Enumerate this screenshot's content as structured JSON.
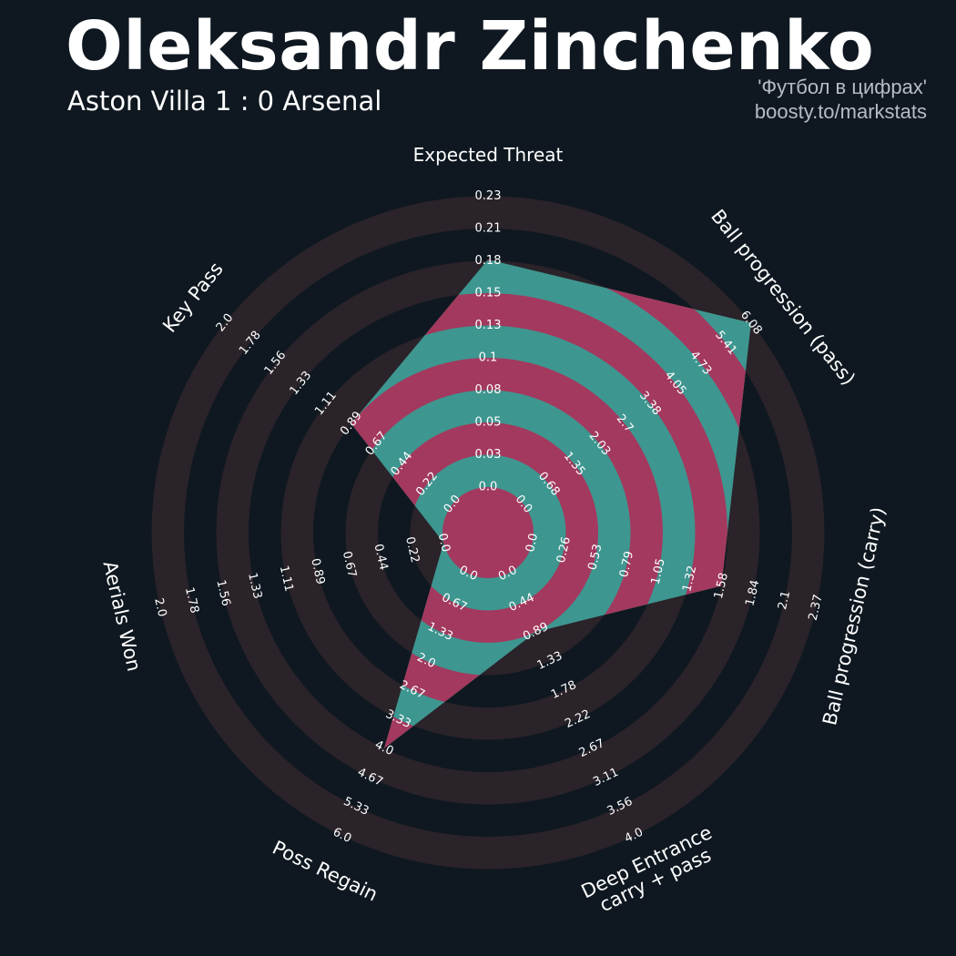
{
  "header": {
    "title": "Oleksandr Zinchenko",
    "subtitle": "Aston Villa 1 : 0 Arsenal",
    "credit_line1": "'Футбол в цифрах'",
    "credit_line2": "boosty.to/markstats"
  },
  "colors": {
    "background": "#0f1820",
    "ring_band": "#2a2329",
    "polygon_fill": "#3e9690",
    "polygon_band": "#a3395e",
    "text": "#ffffff",
    "credit_text": "#b8bcc2"
  },
  "chart_data": {
    "type": "radar",
    "title": "Oleksandr Zinchenko",
    "subtitle": "Aston Villa 1 : 0 Arsenal",
    "axes": [
      {
        "label": [
          "Expected Threat"
        ],
        "ticks": [
          "0.0",
          "0.03",
          "0.05",
          "0.08",
          "0.1",
          "0.13",
          "0.15",
          "0.18",
          "0.21",
          "0.23"
        ],
        "min": 0.0,
        "max": 0.23,
        "value": 0.18
      },
      {
        "label": [
          "Ball progression (pass)"
        ],
        "ticks": [
          "0.0",
          "0.68",
          "1.35",
          "2.03",
          "2.7",
          "3.38",
          "4.05",
          "4.73",
          "5.41",
          "6.08"
        ],
        "min": 0.0,
        "max": 6.08,
        "value": 6.08
      },
      {
        "label": [
          "Ball progression (carry)"
        ],
        "ticks": [
          "0.0",
          "0.26",
          "0.53",
          "0.79",
          "1.05",
          "1.32",
          "1.58",
          "1.84",
          "2.1",
          "2.37"
        ],
        "min": 0.0,
        "max": 2.37,
        "value": 1.58
      },
      {
        "label": [
          "Deep Entrance",
          "carry + pass"
        ],
        "ticks": [
          "0.0",
          "0.44",
          "0.89",
          "1.33",
          "1.78",
          "2.22",
          "2.67",
          "3.11",
          "3.56",
          "4.0"
        ],
        "min": 0.0,
        "max": 4.0,
        "value": 0.89
      },
      {
        "label": [
          "Poss Regain"
        ],
        "ticks": [
          "0.0",
          "0.67",
          "1.33",
          "2.0",
          "2.67",
          "3.33",
          "4.0",
          "4.67",
          "5.33",
          "6.0"
        ],
        "min": 0.0,
        "max": 6.0,
        "value": 4.0
      },
      {
        "label": [
          "Aerials Won"
        ],
        "ticks": [
          "0.0",
          "0.22",
          "0.44",
          "0.67",
          "0.89",
          "1.11",
          "1.33",
          "1.56",
          "1.78",
          "2.0"
        ],
        "min": 0.0,
        "max": 2.0,
        "value": 0.0
      },
      {
        "label": [
          "Key Pass"
        ],
        "ticks": [
          "0.0",
          "0.22",
          "0.44",
          "0.67",
          "0.89",
          "1.11",
          "1.33",
          "1.56",
          "1.78",
          "2.0"
        ],
        "min": 0.0,
        "max": 2.0,
        "value": 0.89
      }
    ]
  }
}
